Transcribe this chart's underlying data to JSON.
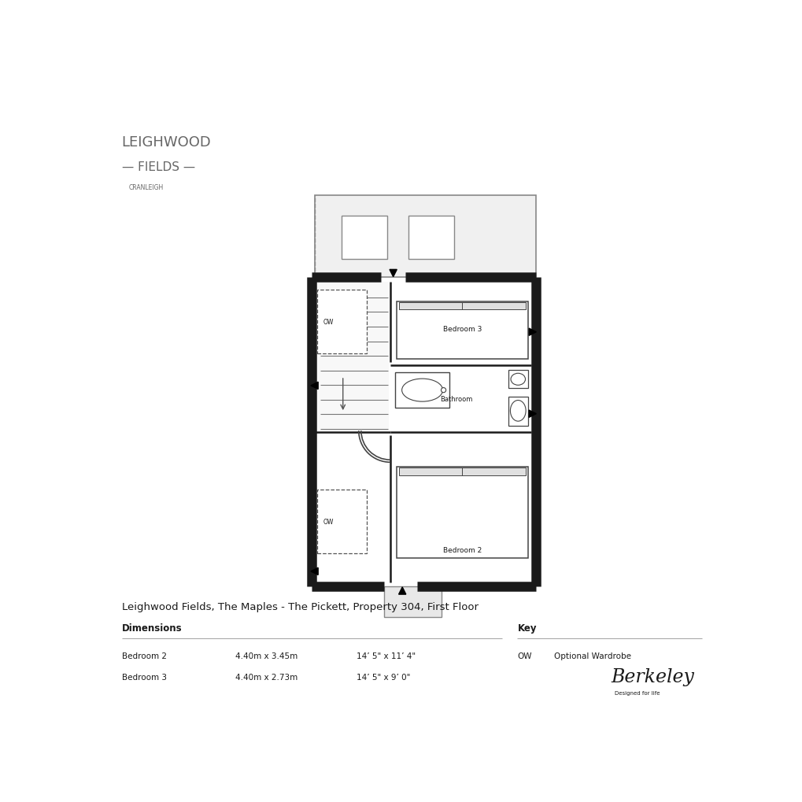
{
  "title": "Leighwood Fields, The Maples - The Pickett, Property 304, First Floor",
  "logo_line1": "LEIGHWOOD",
  "logo_line2": "— FIELDS —",
  "logo_line3": "CRANLEIGH",
  "dimensions_header": "Dimensions",
  "key_header": "Key",
  "rooms": [
    {
      "name": "Bedroom 2",
      "metric": "4.40m x 3.45m",
      "imperial": "14’ 5\" x 11’ 4\""
    },
    {
      "name": "Bedroom 3",
      "metric": "4.40m x 2.73m",
      "imperial": "14’ 5\" x 9’ 0\""
    }
  ],
  "key_entries": [
    {
      "abbr": "OW",
      "desc": "Optional Wardrobe"
    }
  ],
  "bg_color": "#ffffff",
  "wall_color": "#1a1a1a",
  "text_color": "#1a1a1a",
  "logo_color": "#666666",
  "gray_fill": "#f0f0f0",
  "mid_gray": "#888888",
  "inner_line": "#444444"
}
